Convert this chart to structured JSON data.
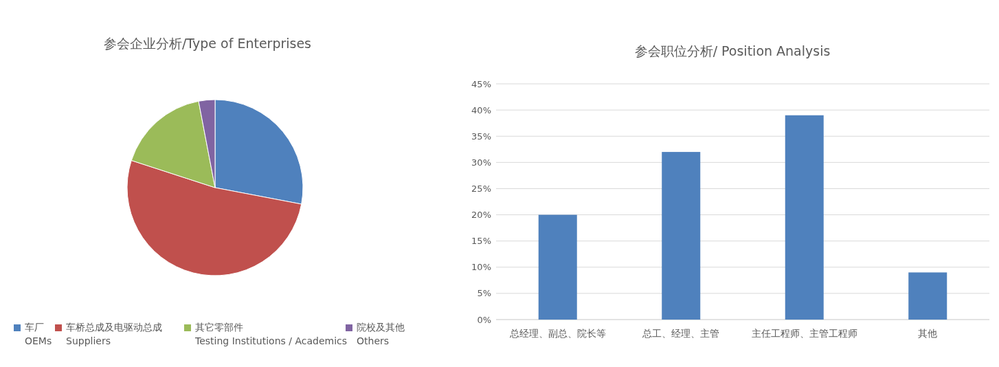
{
  "chart_data": [
    {
      "type": "pie",
      "title": "参会企业分析/Type of Enterprises",
      "categories": [
        "车厂\nOEMs",
        "车桥总成及电驱动总成\nSuppliers",
        "其它零部件\nTesting Institutions / Academics",
        "院校及其他\nOthers"
      ],
      "values": [
        28,
        52,
        17,
        3
      ],
      "colors": [
        "#4f81bd",
        "#c0504d",
        "#9bbb59",
        "#8064a2"
      ],
      "legend": "bottom"
    },
    {
      "type": "bar",
      "title": "参会职位分析/ Position Analysis",
      "categories": [
        "总经理、副总、院长等",
        "总工、经理、主管",
        "主任工程师、主管工程师",
        "其他"
      ],
      "values": [
        20,
        32,
        39,
        9
      ],
      "color": "#4f81bd",
      "ylim": [
        0,
        45
      ],
      "yticks": [
        {
          "value": 0,
          "label": "0%"
        },
        {
          "value": 5,
          "label": "5%"
        },
        {
          "value": 10,
          "label": "10%"
        },
        {
          "value": 15,
          "label": "15%"
        },
        {
          "value": 20,
          "label": "20%"
        },
        {
          "value": 25,
          "label": "25%"
        },
        {
          "value": 30,
          "label": "30%"
        },
        {
          "value": 35,
          "label": "35%"
        },
        {
          "value": 40,
          "label": "40%"
        },
        {
          "value": 45,
          "label": "45%"
        }
      ],
      "grid": "y"
    }
  ]
}
